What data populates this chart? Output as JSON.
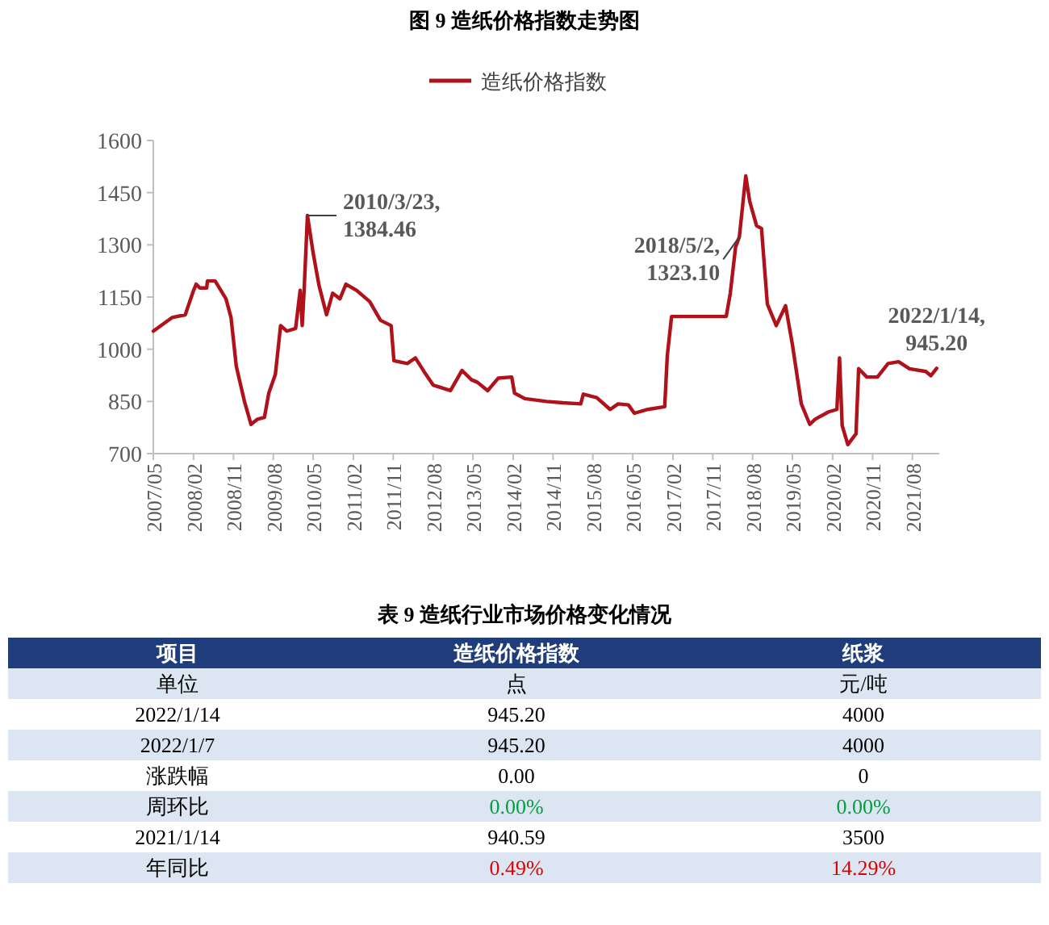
{
  "chart_data": [
    {
      "type": "line",
      "title": "图 9 造纸价格指数走势图",
      "x": [
        "2007-05-01",
        "2007-09-06",
        "2007-12-06",
        "2008-02-01",
        "2008-02-19",
        "2008-03-15",
        "2008-05-01",
        "2008-05-06",
        "2008-06-28",
        "2008-09-10",
        "2008-10-15",
        "2008-11-20",
        "2009-01-15",
        "2009-03-01",
        "2009-04-15",
        "2009-06-01",
        "2009-07-01",
        "2009-08-15",
        "2009-09-20",
        "2009-11-01",
        "2010-01-01",
        "2010-02-01",
        "2010-02-15",
        "2010-03-01",
        "2010-03-23",
        "2010-05-01",
        "2010-06-10",
        "2010-08-01",
        "2010-09-12",
        "2010-11-01",
        "2010-12-12",
        "2011-02-24",
        "2011-05-24",
        "2011-08-06",
        "2011-10-18",
        "2011-11-06",
        "2012-02-06",
        "2012-04-01",
        "2012-06-01",
        "2012-08-01",
        "2012-11-28",
        "2013-02-15",
        "2013-04-22",
        "2013-06-01",
        "2013-08-10",
        "2013-10-22",
        "2014-01-22",
        "2014-02-10",
        "2014-04-22",
        "2014-09-18",
        "2015-01-06",
        "2015-05-10",
        "2015-05-28",
        "2015-08-28",
        "2015-11-28",
        "2016-01-22",
        "2016-04-01",
        "2016-05-12",
        "2016-08-12",
        "2016-12-06",
        "2016-12-24",
        "2017-01-22",
        "2018-02-01",
        "2018-03-01",
        "2018-04-06",
        "2018-05-02",
        "2018-06-15",
        "2018-07-12",
        "2018-08-28",
        "2018-10-01",
        "2018-11-10",
        "2019-01-10",
        "2019-03-15",
        "2019-05-01",
        "2019-07-01",
        "2019-08-28",
        "2019-10-04",
        "2020-01-04",
        "2020-03-01",
        "2020-03-19",
        "2020-04-06",
        "2020-05-15",
        "2020-07-10",
        "2020-07-28",
        "2020-09-22",
        "2020-12-04",
        "2021-02-15",
        "2021-04-28",
        "2021-07-12",
        "2021-11-01",
        "2021-12-06",
        "2022-01-14"
      ],
      "series": [
        {
          "name": "造纸价格指数",
          "color": "#b0121b",
          "values": [
            1052,
            1091,
            1099,
            1169,
            1187,
            1176,
            1176,
            1196,
            1196,
            1145,
            1091,
            951,
            850,
            784,
            799,
            804,
            874,
            928,
            1068,
            1052,
            1060,
            1169,
            1068,
            1176,
            1384.46,
            1277,
            1184,
            1099,
            1161,
            1145,
            1187,
            1169,
            1137,
            1083,
            1068,
            967,
            959,
            975,
            935,
            897,
            881,
            939,
            912,
            905,
            881,
            917,
            920,
            874,
            858,
            850,
            846,
            843,
            871,
            861,
            827,
            843,
            840,
            816,
            827,
            835,
            982,
            1094,
            1094,
            1161,
            1293,
            1323.1,
            1498,
            1425,
            1355,
            1347,
            1130,
            1068,
            1125,
            1013,
            843,
            784,
            799,
            820,
            827,
            975,
            781,
            726,
            757,
            944,
            920,
            920,
            959,
            964,
            944,
            936,
            924,
            945.2
          ]
        }
      ],
      "legend": "top",
      "xlim": [
        "2007-05-01",
        "2022-02-01"
      ],
      "xticks": [
        {
          "value": "2007-05",
          "label": "2007/05"
        },
        {
          "value": "2008-02",
          "label": "2008/02"
        },
        {
          "value": "2008-11",
          "label": "2008/11"
        },
        {
          "value": "2009-08",
          "label": "2009/08"
        },
        {
          "value": "2010-05",
          "label": "2010/05"
        },
        {
          "value": "2011-02",
          "label": "2011/02"
        },
        {
          "value": "2011-11",
          "label": "2011/11"
        },
        {
          "value": "2012-08",
          "label": "2012/08"
        },
        {
          "value": "2013-05",
          "label": "2013/05"
        },
        {
          "value": "2014-02",
          "label": "2014/02"
        },
        {
          "value": "2014-11",
          "label": "2014/11"
        },
        {
          "value": "2015-08",
          "label": "2015/08"
        },
        {
          "value": "2016-05",
          "label": "2016/05"
        },
        {
          "value": "2017-02",
          "label": "2017/02"
        },
        {
          "value": "2017-11",
          "label": "2017/11"
        },
        {
          "value": "2018-08",
          "label": "2018/08"
        },
        {
          "value": "2019-05",
          "label": "2019/05"
        },
        {
          "value": "2020-02",
          "label": "2020/02"
        },
        {
          "value": "2020-11",
          "label": "2020/11"
        },
        {
          "value": "2021-08",
          "label": "2021/08"
        }
      ],
      "ylim": [
        700,
        1600
      ],
      "yticks": [
        700,
        850,
        1000,
        1150,
        1300,
        1450,
        1600
      ],
      "annotations": [
        {
          "text": "2010/3/23,\n1384.46",
          "x": "2010-03-23",
          "y": 1384.46
        },
        {
          "text": "2018/5/2,\n1323.10",
          "x": "2018-05-02",
          "y": 1323.1
        },
        {
          "text": "2022/1/14,\n945.20",
          "x": "2022-01-14",
          "y": 945.2
        }
      ]
    },
    {
      "type": "other",
      "title": "表 9 造纸行业市场价格变化情况",
      "categories": [
        "项目",
        "造纸价格指数",
        "纸浆"
      ],
      "annotations": [
        "单位",
        "点",
        "元/吨",
        "2022/1/14",
        "945.20",
        "4000",
        "2022/1/7",
        "945.20",
        "4000",
        "涨跌幅",
        "0.00",
        "0",
        "周环比",
        "0.00%",
        "0.00%",
        "2021/1/14",
        "940.59",
        "3500",
        "年同比",
        "0.49%",
        "14.29%"
      ],
      "colors": [
        "#1f3d7a",
        "#dce6f2",
        "#ffffff",
        "#dce6f2",
        "#ffffff",
        "#dce6f2",
        "#ffffff",
        "#dce6f2"
      ]
    }
  ]
}
